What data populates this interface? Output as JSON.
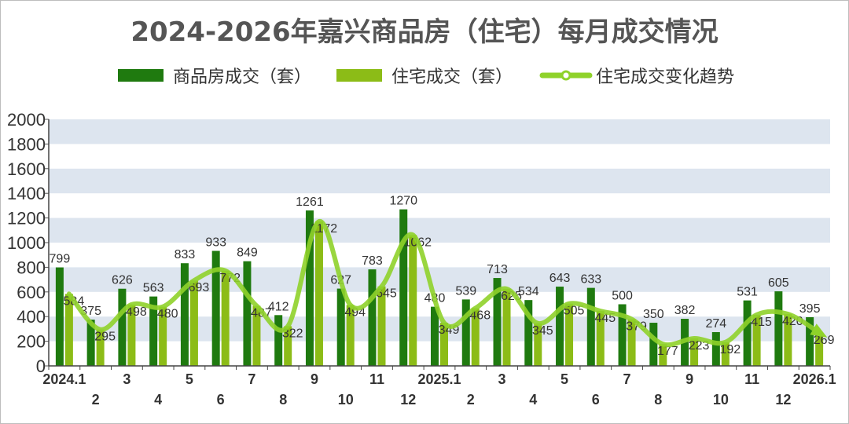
{
  "chart_data": {
    "type": "bar",
    "title": "2024-2026年嘉兴商品房（住宅）每月成交情况",
    "legend": {
      "placement": "top",
      "items": [
        {
          "label": "商品房成交（套）",
          "kind": "bar",
          "color": "#1f7a0f"
        },
        {
          "label": "住宅成交（套）",
          "kind": "bar",
          "color": "#8cbc17"
        },
        {
          "label": "住宅成交变化趋势",
          "kind": "line",
          "color": "#8fd22a"
        }
      ]
    },
    "categories": [
      "2024.1",
      "2",
      "3",
      "4",
      "5",
      "6",
      "7",
      "8",
      "9",
      "10",
      "11",
      "12",
      "2025.1",
      "2",
      "3",
      "4",
      "5",
      "6",
      "7",
      "8",
      "9",
      "10",
      "11",
      "12",
      "2026.1"
    ],
    "category_row": [
      0,
      1,
      0,
      1,
      0,
      1,
      0,
      1,
      0,
      1,
      0,
      1,
      0,
      1,
      0,
      1,
      0,
      1,
      0,
      1,
      0,
      1,
      0,
      1,
      0
    ],
    "series": [
      {
        "name": "商品房成交（套）",
        "color": "#1f7a0f",
        "values": [
          799,
          375,
          626,
          563,
          833,
          933,
          849,
          412,
          1261,
          627,
          783,
          1270,
          480,
          539,
          713,
          534,
          643,
          633,
          500,
          350,
          382,
          274,
          531,
          605,
          395
        ]
      },
      {
        "name": "住宅成交（套）",
        "color": "#8cbc17",
        "values": [
          584,
          295,
          498,
          480,
          693,
          772,
          487,
          322,
          1172,
          494,
          645,
          1062,
          349,
          468,
          625,
          345,
          505,
          445,
          379,
          177,
          223,
          192,
          415,
          420,
          269
        ]
      }
    ],
    "trend_series": "住宅成交（套）",
    "yticks": [
      0,
      200,
      400,
      600,
      800,
      1000,
      1200,
      1400,
      1600,
      1800,
      2000
    ],
    "ylim": [
      0,
      2000
    ],
    "grid": true
  }
}
